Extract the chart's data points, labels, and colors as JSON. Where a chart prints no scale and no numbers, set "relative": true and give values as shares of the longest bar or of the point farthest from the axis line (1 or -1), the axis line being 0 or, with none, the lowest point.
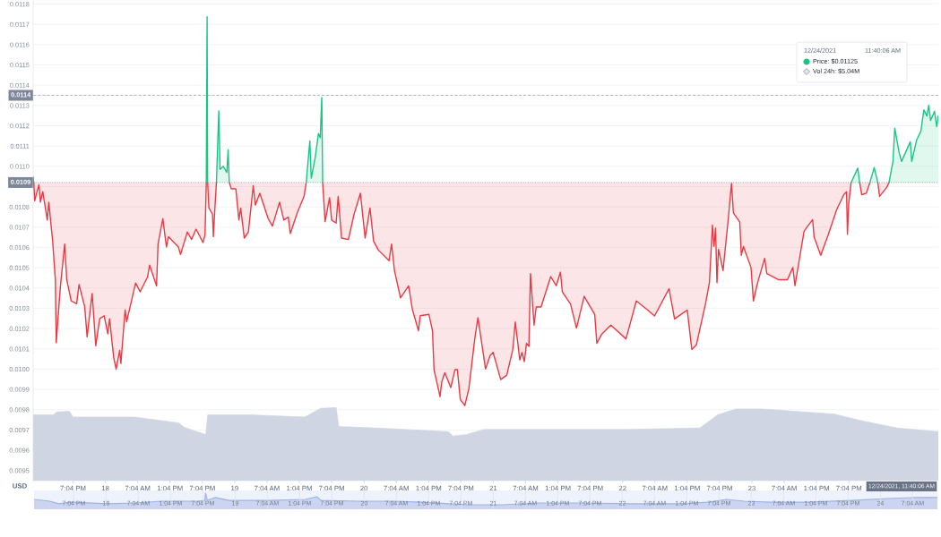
{
  "chart_data": [
    {
      "type": "line",
      "ylabel": "USD",
      "grid": "y",
      "xlim": [
        "2021-12-17T11:40",
        "2021-12-24T11:40"
      ],
      "ylim": [
        0.00945,
        0.01182
      ],
      "xticks": [
        {
          "value": "2021-12-17T19:04",
          "label": "7:04 PM"
        },
        {
          "value": "2021-12-18T01:04",
          "label": "18"
        },
        {
          "value": "2021-12-18T07:04",
          "label": "7:04 AM"
        },
        {
          "value": "2021-12-18T13:04",
          "label": "1:04 PM"
        },
        {
          "value": "2021-12-18T19:04",
          "label": "7:04 PM"
        },
        {
          "value": "2021-12-19T01:04",
          "label": "19"
        },
        {
          "value": "2021-12-19T07:04",
          "label": "7:04 AM"
        },
        {
          "value": "2021-12-19T13:04",
          "label": "1:04 PM"
        },
        {
          "value": "2021-12-19T19:04",
          "label": "7:04 PM"
        },
        {
          "value": "2021-12-20T01:04",
          "label": "20"
        },
        {
          "value": "2021-12-20T07:04",
          "label": "7:04 AM"
        },
        {
          "value": "2021-12-20T13:04",
          "label": "1:04 PM"
        },
        {
          "value": "2021-12-20T19:04",
          "label": "7:04 PM"
        },
        {
          "value": "2021-12-21T01:04",
          "label": "21"
        },
        {
          "value": "2021-12-21T07:04",
          "label": "7:04 AM"
        },
        {
          "value": "2021-12-21T13:04",
          "label": "1:04 PM"
        },
        {
          "value": "2021-12-21T19:04",
          "label": "7:04 PM"
        },
        {
          "value": "2021-12-22T01:04",
          "label": "22"
        },
        {
          "value": "2021-12-22T07:04",
          "label": "7:04 AM"
        },
        {
          "value": "2021-12-22T13:04",
          "label": "1:04 PM"
        },
        {
          "value": "2021-12-22T19:04",
          "label": "7:04 PM"
        },
        {
          "value": "2021-12-23T01:04",
          "label": "23"
        },
        {
          "value": "2021-12-23T07:04",
          "label": "7:04 AM"
        },
        {
          "value": "2021-12-23T13:04",
          "label": "1:04 PM"
        },
        {
          "value": "2021-12-23T19:04",
          "label": "7:04 PM"
        }
      ],
      "yticks": [
        0.0095,
        0.0096,
        0.0097,
        0.0098,
        0.0099,
        {
          "value": 0.01,
          "label": "0.0100"
        },
        0.0101,
        0.0102,
        0.0103,
        0.0104,
        0.0105,
        0.0106,
        0.0107,
        0.0108,
        {
          "value": 0.0109,
          "label": null
        },
        {
          "value": 0.011,
          "label": "0.0110"
        },
        0.0111,
        0.0112,
        0.0113,
        0.0114,
        0.0115,
        0.0116,
        0.0117,
        0.0118
      ],
      "ref_lines": [
        {
          "axis": "y",
          "value": 0.01092,
          "label": "0.0109",
          "color": "#9aa1ad",
          "line_style": "dotted"
        },
        {
          "axis": "y",
          "value": 0.01135,
          "label": "0.0114",
          "color": "#b3b9c3",
          "line_style": "dashed"
        }
      ],
      "annotations": [
        "12/24/2021",
        "11:40:06 AM",
        "Price: $0.01125",
        "Vol 24h: $5.04M",
        "12/24/2021, 11:40:06 AM"
      ],
      "series": [
        {
          "color": "#ea3943",
          "x": [
            "2021-12-17T11:47",
            "2021-12-17T11:57",
            "2021-12-17T12:44",
            "2021-12-17T13:01",
            "2021-12-17T13:27",
            "2021-12-17T14:17",
            "2021-12-17T14:34",
            "2021-12-17T15:17",
            "2021-12-17T15:47",
            "2021-12-17T15:57",
            "2021-12-17T16:41",
            "2021-12-17T17:31",
            "2021-12-17T17:54",
            "2021-12-17T18:44",
            "2021-12-17T19:44",
            "2021-12-17T20:11",
            "2021-12-17T21:14",
            "2021-12-17T21:41",
            "2021-12-17T22:37",
            "2021-12-17T23:17",
            "2021-12-18T00:01",
            "2021-12-18T00:51",
            "2021-12-18T01:31",
            "2021-12-18T01:51",
            "2021-12-18T02:37",
            "2021-12-18T03:04",
            "2021-12-18T03:44",
            "2021-12-18T03:57",
            "2021-12-18T04:44",
            "2021-12-18T05:01",
            "2021-12-18T06:41",
            "2021-12-18T07:31",
            "2021-12-18T08:54",
            "2021-12-18T09:17",
            "2021-12-18T10:34",
            "2021-12-18T10:51",
            "2021-12-18T11:44",
            "2021-12-18T12:24",
            "2021-12-18T12:47",
            "2021-12-18T14:37",
            "2021-12-18T15:01",
            "2021-12-18T16:17",
            "2021-12-18T17:04",
            "2021-12-18T17:54",
            "2021-12-18T19:11",
            "2021-12-18T19:34",
            "2021-12-18T19:48",
            "2021-12-18T19:57",
            "2021-12-18T20:03",
            "2021-12-18T20:17",
            "2021-12-18T20:57",
            "2021-12-18T21:07",
            "2021-12-18T21:24",
            "2021-12-18T21:41",
            "2021-12-18T22:07",
            "2021-12-18T22:21",
            "2021-12-18T22:57",
            "2021-12-18T23:37",
            "2021-12-18T23:51",
            "2021-12-19T00:04",
            "2021-12-19T00:27",
            "2021-12-19T01:17",
            "2021-12-19T01:51",
            "2021-12-19T02:11",
            "2021-12-19T02:51",
            "2021-12-19T03:37",
            "2021-12-19T04:31",
            "2021-12-19T04:54",
            "2021-12-19T05:44",
            "2021-12-19T07:17",
            "2021-12-19T08:04",
            "2021-12-19T09:24",
            "2021-12-19T10:11",
            "2021-12-19T11:01",
            "2021-12-19T11:24",
            "2021-12-19T12:41",
            "2021-12-19T13:57",
            "2021-12-19T14:21",
            "2021-12-19T15:01",
            "2021-12-19T15:17",
            "2021-12-19T16:01",
            "2021-12-19T16:37",
            "2021-12-19T16:57",
            "2021-12-19T17:14",
            "2021-12-19T17:24",
            "2021-12-19T17:51",
            "2021-12-19T18:41",
            "2021-12-19T19:04",
            "2021-12-19T19:54",
            "2021-12-19T20:17",
            "2021-12-19T20:54",
            "2021-12-19T22:11",
            "2021-12-19T23:14",
            "2021-12-20T00:24",
            "2021-12-20T01:17",
            "2021-12-20T02:11",
            "2021-12-20T02:51",
            "2021-12-20T03:44",
            "2021-12-20T05:44",
            "2021-12-20T06:11",
            "2021-12-20T06:44",
            "2021-12-20T07:51",
            "2021-12-20T09:21",
            "2021-12-20T10:04",
            "2021-12-20T11:11",
            "2021-12-20T11:31",
            "2021-12-20T13:07",
            "2021-12-20T13:47",
            "2021-12-20T14:04",
            "2021-12-20T15:11",
            "2021-12-20T15:31",
            "2021-12-20T16:04",
            "2021-12-20T17:11",
            "2021-12-20T17:57",
            "2021-12-20T18:24",
            "2021-12-20T18:57",
            "2021-12-20T19:47",
            "2021-12-20T20:32",
            "2021-12-20T21:40",
            "2021-12-20T22:13",
            "2021-12-20T23:38",
            "2021-12-21T00:28",
            "2021-12-21T01:02",
            "2021-12-21T02:27",
            "2021-12-21T03:34",
            "2021-12-21T04:42",
            "2021-12-21T05:09",
            "2021-12-21T05:59",
            "2021-12-21T06:23",
            "2021-12-21T06:50",
            "2021-12-21T07:14",
            "2021-12-21T07:41",
            "2021-12-21T07:58",
            "2021-12-21T08:38",
            "2021-12-21T09:02",
            "2021-12-21T09:56",
            "2021-12-21T11:44",
            "2021-12-21T12:45",
            "2021-12-21T13:32",
            "2021-12-21T13:53",
            "2021-12-21T15:24",
            "2021-12-21T16:31",
            "2021-12-21T17:56",
            "2021-12-21T19:54",
            "2021-12-21T20:17",
            "2021-12-21T21:11",
            "2021-12-21T22:53",
            "2021-12-22T01:42",
            "2021-12-22T03:37",
            "2021-12-22T05:45",
            "2021-12-22T07:00",
            "2021-12-22T09:41",
            "2021-12-22T10:43",
            "2021-12-22T13:04",
            "2021-12-22T13:55",
            "2021-12-22T14:46",
            "2021-12-22T16:27",
            "2021-12-22T17:11",
            "2021-12-22T17:45",
            "2021-12-22T18:02",
            "2021-12-22T18:19",
            "2021-12-22T18:35",
            "2021-12-22T18:52",
            "2021-12-22T19:43",
            "2021-12-22T20:41",
            "2021-12-22T21:17",
            "2021-12-22T21:38",
            "2021-12-22T22:49",
            "2021-12-22T23:06",
            "2021-12-22T23:29",
            "2021-12-23T00:54",
            "2021-12-23T01:21",
            "2021-12-23T02:08",
            "2021-12-23T03:26",
            "2021-12-23T03:50",
            "2021-12-23T05:58",
            "2021-12-23T07:40",
            "2021-12-23T08:40",
            "2021-12-23T09:04",
            "2021-12-23T10:45",
            "2021-12-23T12:20",
            "2021-12-23T12:37",
            "2021-12-23T13:51",
            "2021-12-23T15:16",
            "2021-12-23T16:47",
            "2021-12-23T18:08",
            "2021-12-23T18:38",
            "2021-12-23T18:48",
            "2021-12-23T19:02",
            "2021-12-23T19:29",
            "2021-12-23T20:43",
            "2021-12-23T21:04",
            "2021-12-23T21:27",
            "2021-12-23T22:18",
            "2021-12-23T22:58",
            "2021-12-23T23:46",
            "2021-12-24T00:26",
            "2021-12-24T00:46",
            "2021-12-24T02:07",
            "2021-12-24T02:31"
          ],
          "values": [
            0.01092,
            0.01083,
            0.010909,
            0.010823,
            0.010875,
            0.010735,
            0.010823,
            0.010631,
            0.01044,
            0.01013,
            0.010395,
            0.010617,
            0.01044,
            0.010336,
            0.010322,
            0.010417,
            0.010307,
            0.010159,
            0.010373,
            0.010115,
            0.010248,
            0.010263,
            0.010174,
            0.010248,
            0.010056,
            0.01,
            0.010093,
            0.010027,
            0.010292,
            0.010233,
            0.010425,
            0.010381,
            0.010454,
            0.010513,
            0.01041,
            0.010617,
            0.010742,
            0.010602,
            0.010653,
            0.010602,
            0.010565,
            0.010676,
            0.010639,
            0.01069,
            0.010624,
            0.010661,
            0.01092,
            null,
            0.01092,
            0.010794,
            0.010764,
            0.010653,
            0.010794,
            0.01092,
            null,
            null,
            null,
            null,
            null,
            0.01092,
            0.010889,
            0.010889,
            0.010735,
            0.010794,
            0.010646,
            0.010676,
            0.010904,
            0.010808,
            0.010867,
            0.010742,
            0.010705,
            0.010823,
            0.010735,
            0.010749,
            0.010668,
            0.010771,
            0.010852,
            0.01092,
            null,
            null,
            null,
            null,
            null,
            null,
            0.01092,
            0.010727,
            0.010845,
            0.010735,
            0.01072,
            0.010852,
            0.010646,
            0.010639,
            0.010764,
            0.010867,
            0.010646,
            0.010794,
            0.010631,
            0.010587,
            0.010535,
            0.010617,
            0.010484,
            0.010351,
            0.01041,
            0.010292,
            0.010189,
            0.010263,
            0.01027,
            0.010189,
            0.009997,
            0.009864,
            0.009938,
            0.009982,
            0.009909,
            0.009997,
            0.009997,
            0.00985,
            0.00982,
            0.009903,
            0.010157,
            0.010254,
            0.01,
            0.010067,
            0.010082,
            0.009948,
            0.00997,
            0.010097,
            0.010232,
            0.010045,
            0.010082,
            0.010037,
            0.010127,
            0.010112,
            0.010471,
            0.010217,
            0.010306,
            0.010306,
            0.010456,
            0.010411,
            0.010478,
            0.010381,
            0.010321,
            0.010202,
            0.010359,
            0.010269,
            0.010127,
            0.010172,
            0.010217,
            0.010149,
            0.010336,
            0.010291,
            0.010262,
            0.010396,
            0.010247,
            0.010291,
            0.010097,
            0.01012,
            0.010321,
            0.010426,
            0.01071,
            0.010605,
            0.010695,
            0.010426,
            0.01059,
            0.010486,
            0.01074,
            0.010916,
            0.01077,
            0.010725,
            0.010561,
            0.010605,
            0.010501,
            0.010336,
            0.010426,
            0.010546,
            0.010471,
            0.010441,
            0.010441,
            0.010501,
            0.010411,
            0.01068,
            0.010737,
            0.01065,
            0.010561,
            0.010665,
            0.010785,
            0.01086,
            0.010874,
            0.010665,
            0.010815,
            0.01092,
            null,
            0.01092,
            0.01086,
            0.010867,
            0.01092,
            null,
            0.01092,
            0.010852,
            0.010897,
            0.01092
          ],
          "lower": [
            0.01092,
            0.01083,
            0.010909,
            0.010823,
            0.010875,
            0.010735,
            0.010823,
            0.010631,
            0.01044,
            0.01013,
            0.010395,
            0.010617,
            0.01044,
            0.010336,
            0.010322,
            0.010417,
            0.010307,
            0.010159,
            0.010373,
            0.010115,
            0.010248,
            0.010263,
            0.010174,
            0.010248,
            0.010056,
            0.01,
            0.010093,
            0.010027,
            0.010292,
            0.010233,
            0.010425,
            0.010381,
            0.010454,
            0.010513,
            0.01041,
            0.010617,
            0.010742,
            0.010602,
            0.010653,
            0.010602,
            0.010565,
            0.010676,
            0.010639,
            0.01069,
            0.010624,
            0.010661,
            0.01092,
            null,
            0.01092,
            0.010794,
            0.010764,
            0.010653,
            0.010794,
            0.01092,
            null,
            null,
            null,
            null,
            null,
            0.01092,
            0.010889,
            0.010889,
            0.010735,
            0.010794,
            0.010646,
            0.010676,
            0.010904,
            0.010808,
            0.010867,
            0.010742,
            0.010705,
            0.010823,
            0.010735,
            0.010749,
            0.010668,
            0.010771,
            0.010852,
            0.01092,
            null,
            null,
            null,
            null,
            null,
            null,
            0.01092,
            0.010727,
            0.010845,
            0.010735,
            0.01072,
            0.010852,
            0.010646,
            0.010639,
            0.010764,
            0.010867,
            0.010646,
            0.010794,
            0.010631,
            0.010587,
            0.010535,
            0.010617,
            0.010484,
            0.010351,
            0.01041,
            0.010292,
            0.010189,
            0.010263,
            0.01027,
            0.010189,
            0.009997,
            0.009864,
            0.009938,
            0.009982,
            0.009909,
            0.009997,
            0.009997,
            0.00985,
            0.00982,
            0.009903,
            0.010157,
            0.010254,
            0.01,
            0.010067,
            0.010082,
            0.009948,
            0.00997,
            0.010097,
            0.010232,
            0.010045,
            0.010082,
            0.010037,
            0.010127,
            0.010112,
            0.010471,
            0.010217,
            0.010306,
            0.010306,
            0.010456,
            0.010411,
            0.010478,
            0.010381,
            0.010321,
            0.010202,
            0.010359,
            0.010269,
            0.010127,
            0.010172,
            0.010217,
            0.010149,
            0.010336,
            0.010291,
            0.010262,
            0.010396,
            0.010247,
            0.010291,
            0.010097,
            0.01012,
            0.010321,
            0.010426,
            0.01071,
            0.010605,
            0.010695,
            0.010426,
            0.01059,
            0.010486,
            0.01074,
            0.010916,
            0.01077,
            0.010725,
            0.010561,
            0.010605,
            0.010501,
            0.010336,
            0.010426,
            0.010546,
            0.010471,
            0.010441,
            0.010441,
            0.010501,
            0.010411,
            0.01068,
            0.010737,
            0.01065,
            0.010561,
            0.010665,
            0.010785,
            0.01086,
            0.010874,
            0.010665,
            0.010815,
            0.01092,
            null,
            0.01092,
            0.01086,
            0.010867,
            0.01092,
            null,
            0.01092,
            0.010852,
            0.010897,
            0.01092
          ],
          "upper": [
            0.01092,
            0.01092,
            0.01092,
            0.01092,
            0.01092,
            0.01092,
            0.01092,
            0.01092,
            0.01092,
            0.01092,
            0.01092,
            0.01092,
            0.01092,
            0.01092,
            0.01092,
            0.01092,
            0.01092,
            0.01092,
            0.01092,
            0.01092,
            0.01092,
            0.01092,
            0.01092,
            0.01092,
            0.01092,
            0.01092,
            0.01092,
            0.01092,
            0.01092,
            0.01092,
            0.01092,
            0.01092,
            0.01092,
            0.01092,
            0.01092,
            0.01092,
            0.01092,
            0.01092,
            0.01092,
            0.01092,
            0.01092,
            0.01092,
            0.01092,
            0.01092,
            0.01092,
            0.01092,
            0.01092,
            null,
            0.01092,
            0.01092,
            0.01092,
            0.01092,
            0.01092,
            0.01092,
            null,
            null,
            null,
            null,
            null,
            0.01092,
            0.01092,
            0.01092,
            0.01092,
            0.01092,
            0.01092,
            0.01092,
            0.01092,
            0.01092,
            0.01092,
            0.01092,
            0.01092,
            0.01092,
            0.01092,
            0.01092,
            0.01092,
            0.01092,
            0.01092,
            0.01092,
            null,
            null,
            null,
            null,
            null,
            null,
            0.01092,
            0.01092,
            0.01092,
            0.01092,
            0.01092,
            0.01092,
            0.01092,
            0.01092,
            0.01092,
            0.01092,
            0.01092,
            0.01092,
            0.01092,
            0.01092,
            0.01092,
            0.01092,
            0.01092,
            0.01092,
            0.01092,
            0.01092,
            0.01092,
            0.01092,
            0.01092,
            0.01092,
            0.01092,
            0.01092,
            0.01092,
            0.01092,
            0.01092,
            0.01092,
            0.01092,
            0.01092,
            0.01092,
            0.01092,
            0.01092,
            0.01092,
            0.01092,
            0.01092,
            0.01092,
            0.01092,
            0.01092,
            0.01092,
            0.01092,
            0.01092,
            0.01092,
            0.01092,
            0.01092,
            0.01092,
            0.01092,
            0.01092,
            0.01092,
            0.01092,
            0.01092,
            0.01092,
            0.01092,
            0.01092,
            0.01092,
            0.01092,
            0.01092,
            0.01092,
            0.01092,
            0.01092,
            0.01092,
            0.01092,
            0.01092,
            0.01092,
            0.01092,
            0.01092,
            0.01092,
            0.01092,
            0.01092,
            0.01092,
            0.01092,
            0.01092,
            0.01092,
            0.01092,
            0.01092,
            0.01092,
            0.01092,
            0.01092,
            0.01092,
            0.01092,
            0.01092,
            0.01092,
            0.01092,
            0.01092,
            0.01092,
            0.01092,
            0.01092,
            0.01092,
            0.01092,
            0.01092,
            0.01092,
            0.01092,
            0.01092,
            0.01092,
            0.01092,
            0.01092,
            0.01092,
            0.01092,
            0.01092,
            0.01092,
            0.01092,
            0.01092,
            0.01092,
            0.01092,
            null,
            0.01092,
            0.01092,
            0.01092,
            0.01092,
            null,
            0.01092,
            0.01092,
            0.01092,
            0.01092
          ]
        },
        {
          "color": "#16c784",
          "x": [
            "2021-12-17T11:40",
            "2021-12-17T11:47",
            "2021-12-17T11:57",
            "2021-12-18T19:48",
            "2021-12-18T19:57",
            "2021-12-18T20:03",
            "2021-12-18T20:17",
            "2021-12-18T21:41",
            "2021-12-18T22:07",
            "2021-12-18T22:21",
            "2021-12-18T22:57",
            "2021-12-18T23:37",
            "2021-12-18T23:51",
            "2021-12-19T00:04",
            "2021-12-19T00:27",
            "2021-12-19T14:21",
            "2021-12-19T15:01",
            "2021-12-19T15:17",
            "2021-12-19T16:01",
            "2021-12-19T16:37",
            "2021-12-19T16:57",
            "2021-12-19T17:14",
            "2021-12-19T17:24",
            "2021-12-19T17:51",
            "2021-12-23T19:29",
            "2021-12-23T20:43",
            "2021-12-23T21:04",
            "2021-12-23T21:27",
            "2021-12-23T22:58",
            "2021-12-23T23:46",
            "2021-12-24T00:26",
            "2021-12-24T00:46",
            "2021-12-24T02:31",
            "2021-12-24T03:15",
            "2021-12-24T03:35",
            "2021-12-24T04:23",
            "2021-12-24T04:50",
            "2021-12-24T06:28",
            "2021-12-24T06:44",
            "2021-12-24T07:38",
            "2021-12-24T08:26",
            "2021-12-24T08:59",
            "2021-12-24T09:34",
            "2021-12-24T09:53",
            "2021-12-24T10:14",
            "2021-12-24T10:58",
            "2021-12-24T11:22",
            "2021-12-24T11:40"
          ],
          "values": [
            0.010948,
            0.01092,
            null,
            0.01092,
            0.011737,
            0.01092,
            null,
            0.01092,
            0.011273,
            0.010985,
            0.011,
            0.01097,
            0.011081,
            0.01092,
            null,
            0.01092,
            0.011125,
            0.010941,
            0.011044,
            0.011162,
            0.01114,
            0.011339,
            0.01092,
            null,
            0.01092,
            0.010991,
            0.01092,
            null,
            0.01092,
            0.010994,
            0.01092,
            null,
            0.01092,
            0.011024,
            0.011188,
            0.011069,
            0.011024,
            0.011121,
            0.011024,
            0.011129,
            0.011173,
            0.011278,
            0.011248,
            0.011301,
            0.011226,
            0.011271,
            0.011196,
            0.01125
          ],
          "lower": [
            null,
            null,
            null,
            0.01092,
            0.01092,
            0.01092,
            null,
            0.01092,
            0.01092,
            0.01092,
            0.01092,
            0.01092,
            0.01092,
            0.01092,
            null,
            0.01092,
            0.01092,
            0.01092,
            0.01092,
            0.01092,
            0.01092,
            0.01092,
            0.01092,
            null,
            0.01092,
            0.01092,
            0.01092,
            null,
            0.01092,
            0.01092,
            0.01092,
            null,
            0.01092,
            0.01092,
            0.01092,
            0.01092,
            0.01092,
            0.01092,
            0.01092,
            0.01092,
            0.01092,
            0.01092,
            0.01092,
            0.01092,
            0.01092,
            0.01092,
            0.01092,
            0.01092
          ],
          "upper": [
            null,
            null,
            null,
            0.01092,
            0.011737,
            0.01092,
            null,
            0.01092,
            0.011273,
            0.010985,
            0.011,
            0.01097,
            0.011081,
            0.01092,
            null,
            0.01092,
            0.011125,
            0.010941,
            0.011044,
            0.011162,
            0.01114,
            0.011339,
            0.01092,
            null,
            0.01092,
            0.010991,
            0.01092,
            null,
            0.01092,
            0.010994,
            0.01092,
            null,
            0.01092,
            0.011024,
            0.011188,
            0.011069,
            0.011024,
            0.011121,
            0.011024,
            0.011129,
            0.011173,
            0.011278,
            0.011248,
            0.011301,
            0.011226,
            0.011271,
            0.011196,
            0.01125
          ]
        }
      ]
    },
    {
      "type": "area",
      "relative": true,
      "tick_labels": false,
      "xlim": [
        "2021-12-17T11:40",
        "2021-12-24T11:40"
      ],
      "x": [
        "2021-12-17T11:40",
        "2021-12-17T15:24",
        "2021-12-17T16:04",
        "2021-12-17T18:24",
        "2021-12-17T19:04",
        "2021-12-18T06:24",
        "2021-12-18T14:42",
        "2021-12-18T15:42",
        "2021-12-18T19:42",
        "2021-12-18T20:04",
        "2021-12-19T04:04",
        "2021-12-19T14:04",
        "2021-12-19T17:04",
        "2021-12-19T19:54",
        "2021-12-19T20:24",
        "2021-12-20T03:24",
        "2021-12-20T16:42",
        "2021-12-20T17:36",
        "2021-12-20T20:04",
        "2021-12-20T23:24",
        "2021-12-21T09:24",
        "2021-12-22T02:04",
        "2021-12-22T15:24",
        "2021-12-22T18:42",
        "2021-12-22T22:04",
        "2021-12-23T03:04",
        "2021-12-23T16:24",
        "2021-12-23T21:24",
        "2021-12-24T04:04",
        "2021-12-24T11:40"
      ],
      "series": [
        {
          "color": "#cfd5e2",
          "values": [
            0.9,
            0.9,
            0.94,
            0.95,
            0.87,
            0.87,
            0.79,
            0.73,
            0.63,
            0.9,
            0.9,
            0.87,
            0.99,
            1.0,
            0.74,
            0.72,
            0.67,
            0.61,
            0.63,
            0.7,
            0.7,
            0.7,
            0.72,
            0.9,
            0.98,
            0.98,
            0.91,
            0.82,
            0.72,
            0.67
          ]
        }
      ]
    },
    {
      "type": "area",
      "relative": true,
      "tick_labels": "x",
      "grid": "x",
      "color": "#9fb2e3",
      "xlim": [
        "2021-12-17T11:40",
        "2021-12-24T11:40"
      ],
      "xticks": [
        {
          "value": "2021-12-17T19:04",
          "label": "7:04 PM"
        },
        {
          "value": "2021-12-18T01:04",
          "label": "18"
        },
        {
          "value": "2021-12-18T07:04",
          "label": "7:04 AM"
        },
        {
          "value": "2021-12-18T13:04",
          "label": "1:04 PM"
        },
        {
          "value": "2021-12-18T19:04",
          "label": "7:04 PM"
        },
        {
          "value": "2021-12-19T01:04",
          "label": "19"
        },
        {
          "value": "2021-12-19T07:04",
          "label": "7:04 AM"
        },
        {
          "value": "2021-12-19T13:04",
          "label": "1:04 PM"
        },
        {
          "value": "2021-12-19T19:04",
          "label": "7:04 PM"
        },
        {
          "value": "2021-12-20T01:04",
          "label": "20"
        },
        {
          "value": "2021-12-20T07:04",
          "label": "7:04 AM"
        },
        {
          "value": "2021-12-20T13:04",
          "label": "1:04 PM"
        },
        {
          "value": "2021-12-20T19:04",
          "label": "7:04 PM"
        },
        {
          "value": "2021-12-21T01:04",
          "label": "21"
        },
        {
          "value": "2021-12-21T07:04",
          "label": "7:04 AM"
        },
        {
          "value": "2021-12-21T13:04",
          "label": "1:04 PM"
        },
        {
          "value": "2021-12-21T19:04",
          "label": "7:04 PM"
        },
        {
          "value": "2021-12-22T01:04",
          "label": "22"
        },
        {
          "value": "2021-12-22T07:04",
          "label": "7:04 AM"
        },
        {
          "value": "2021-12-22T13:04",
          "label": "1:04 PM"
        },
        {
          "value": "2021-12-22T19:04",
          "label": "7:04 PM"
        },
        {
          "value": "2021-12-23T01:04",
          "label": "23"
        },
        {
          "value": "2021-12-23T07:04",
          "label": "7:04 AM"
        },
        {
          "value": "2021-12-23T13:04",
          "label": "1:04 PM"
        },
        {
          "value": "2021-12-23T19:04",
          "label": "7:04 PM"
        },
        {
          "value": "2021-12-24T01:04",
          "label": "24"
        },
        {
          "value": "2021-12-24T07:04",
          "label": "7:04 AM"
        }
      ],
      "x": [
        "2021-12-17T11:40",
        "2021-12-17T14:34",
        "2021-12-17T16:14",
        "2021-12-17T18:44",
        "2021-12-18T01:24",
        "2021-12-18T06:24",
        "2021-12-18T11:24",
        "2021-12-18T18:04",
        "2021-12-18T19:24",
        "2021-12-18T19:34",
        "2021-12-18T19:54",
        "2021-12-18T21:24",
        "2021-12-18T23:54",
        "2021-12-19T07:24",
        "2021-12-19T14:04",
        "2021-12-19T16:14",
        "2021-12-19T17:04",
        "2021-12-20T00:04",
        "2021-12-20T06:44",
        "2021-12-20T11:44",
        "2021-12-20T16:44",
        "2021-12-20T20:54",
        "2021-12-21T02:44",
        "2021-12-21T09:24",
        "2021-12-21T17:44",
        "2021-12-22T02:04",
        "2021-12-22T12:04",
        "2021-12-22T17:04",
        "2021-12-22T20:24",
        "2021-12-22T23:44",
        "2021-12-23T04:44",
        "2021-12-23T11:24",
        "2021-12-23T19:44",
        "2021-12-24T02:24",
        "2021-12-24T07:24",
        "2021-12-24T11:40"
      ],
      "values": [
        0.61,
        0.5,
        0.34,
        0.44,
        0.34,
        0.39,
        0.5,
        0.5,
        0.55,
        1.0,
        0.55,
        0.73,
        0.55,
        0.55,
        0.61,
        0.78,
        0.55,
        0.5,
        0.5,
        0.44,
        0.34,
        0.28,
        0.28,
        0.39,
        0.39,
        0.34,
        0.34,
        0.44,
        0.61,
        0.5,
        0.44,
        0.44,
        0.55,
        0.67,
        0.73,
        0.73
      ]
    }
  ]
}
